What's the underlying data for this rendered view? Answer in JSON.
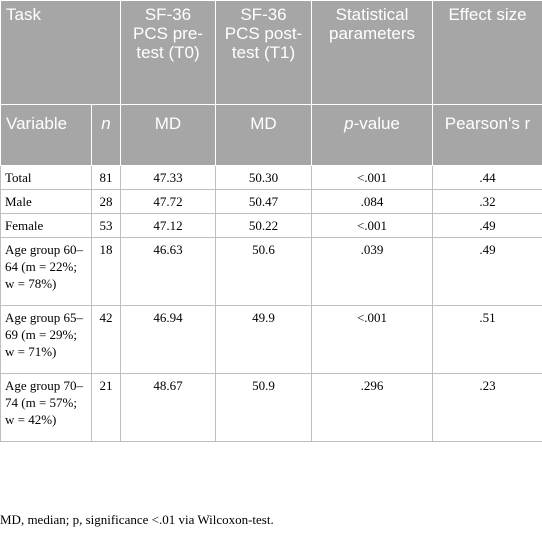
{
  "header": {
    "row1": {
      "task": "Task",
      "pre": "SF-36 PCS pre-test (T0)",
      "post": "SF-36 PCS post-test (T1)",
      "stat": "Statistical parameters",
      "effect": "Effect size"
    },
    "row2": {
      "variable": "Variable",
      "n": "n",
      "pre": "MD",
      "post": "MD",
      "p_italic": "p",
      "p_rest": "-value",
      "effect": "Pearson's r"
    }
  },
  "rows": [
    {
      "variable": "Total",
      "n": "81",
      "pre": "47.33",
      "post": "50.30",
      "p": "<.001",
      "r": ".44"
    },
    {
      "variable": "Male",
      "n": "28",
      "pre": "47.72",
      "post": "50.47",
      "p": ".084",
      "r": ".32"
    },
    {
      "variable": "Female",
      "n": "53",
      "pre": "47.12",
      "post": "50.22",
      "p": "<.001",
      "r": ".49"
    },
    {
      "variable": "Age group 60–64 (m = 22%; w = 78%)",
      "n": "18",
      "pre": "46.63",
      "post": "50.6",
      "p": ".039",
      "r": ".49"
    },
    {
      "variable": "Age group 65–69 (m = 29%; w = 71%)",
      "n": "42",
      "pre": "46.94",
      "post": "49.9",
      "p": "<.001",
      "r": ".51"
    },
    {
      "variable": "Age group 70–74 (m = 57%; w = 42%)",
      "n": "21",
      "pre": "48.67",
      "post": "50.9",
      "p": ".296",
      "r": ".23"
    }
  ],
  "footnote": "MD, median; p, significance <.01 via Wilcoxon-test."
}
